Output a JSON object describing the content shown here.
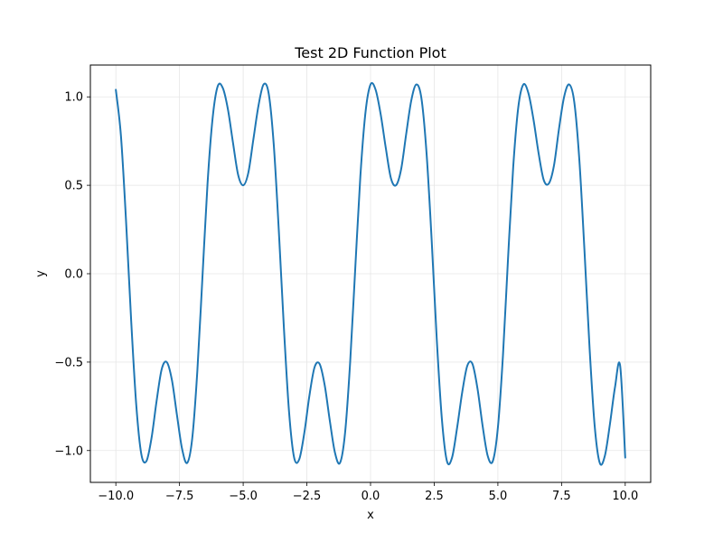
{
  "chart_data": {
    "type": "line",
    "title": "Test 2D Function Plot",
    "xlabel": "x",
    "ylabel": "y",
    "xlim": [
      -11.0,
      11.0
    ],
    "ylim": [
      -1.18,
      1.18
    ],
    "x_ticks": [
      -10.0,
      -7.5,
      -5.0,
      -2.5,
      0.0,
      2.5,
      5.0,
      7.5,
      10.0
    ],
    "x_tick_labels": [
      "−10.0",
      "−7.5",
      "−5.0",
      "−2.5",
      "0.0",
      "2.5",
      "5.0",
      "7.5",
      "10.0"
    ],
    "y_ticks": [
      -1.0,
      -0.5,
      0.0,
      0.5,
      1.0
    ],
    "y_tick_labels": [
      "−1.0",
      "−0.5",
      "0.0",
      "0.5",
      "1.0"
    ],
    "grid": true,
    "legend": "none",
    "series": [
      {
        "color": "#1f77b4",
        "x": [
          -10.0,
          -9.8,
          -9.6,
          -9.4,
          -9.2,
          -9.0,
          -8.8,
          -8.6,
          -8.4,
          -8.2,
          -8.0,
          -7.8,
          -7.6,
          -7.4,
          -7.2,
          -7.0,
          -6.8,
          -6.6,
          -6.4,
          -6.2,
          -6.0,
          -5.8,
          -5.6,
          -5.4,
          -5.2,
          -5.0,
          -4.8,
          -4.6,
          -4.4,
          -4.2,
          -4.0,
          -3.8,
          -3.6,
          -3.4,
          -3.2,
          -3.0,
          -2.8,
          -2.6,
          -2.4,
          -2.2,
          -2.0,
          -1.8,
          -1.6,
          -1.4,
          -1.2,
          -1.0,
          -0.8,
          -0.6,
          -0.4,
          -0.2,
          0.0,
          0.2,
          0.4,
          0.6,
          0.8,
          1.0,
          1.2,
          1.4,
          1.6,
          1.8,
          2.0,
          2.2,
          2.4,
          2.6,
          2.8,
          3.0,
          3.2,
          3.4,
          3.6,
          3.8,
          4.0,
          4.2,
          4.4,
          4.6,
          4.8,
          5.0,
          5.2,
          5.4,
          5.6,
          5.8,
          6.0,
          6.2,
          6.4,
          6.6,
          6.8,
          7.0,
          7.2,
          7.4,
          7.6,
          7.8,
          8.0,
          8.2,
          8.4,
          8.6,
          8.8,
          9.0,
          9.2,
          9.4,
          9.6,
          9.8,
          10.0
        ],
        "y": [
          1.04,
          0.78,
          0.3,
          -0.26,
          -0.74,
          -1.02,
          -1.06,
          -0.93,
          -0.72,
          -0.54,
          -0.5,
          -0.6,
          -0.8,
          -0.99,
          -1.07,
          -0.93,
          -0.55,
          -0.02,
          0.51,
          0.88,
          1.06,
          1.05,
          0.93,
          0.74,
          0.56,
          0.5,
          0.57,
          0.76,
          0.95,
          1.07,
          1.02,
          0.73,
          0.24,
          -0.31,
          -0.78,
          -1.04,
          -1.05,
          -0.9,
          -0.69,
          -0.53,
          -0.51,
          -0.63,
          -0.83,
          -1.01,
          -1.07,
          -0.9,
          -0.5,
          0.03,
          0.55,
          0.91,
          1.07,
          1.04,
          0.9,
          0.71,
          0.54,
          0.5,
          0.59,
          0.79,
          0.98,
          1.07,
          0.99,
          0.68,
          0.19,
          -0.37,
          -0.82,
          -1.06,
          -1.04,
          -0.87,
          -0.67,
          -0.52,
          -0.51,
          -0.65,
          -0.86,
          -1.03,
          -1.06,
          -0.87,
          -0.46,
          0.09,
          0.6,
          0.94,
          1.07,
          1.02,
          0.87,
          0.68,
          0.53,
          0.51,
          0.61,
          0.82,
          1.0,
          1.07,
          0.97,
          0.64,
          0.13,
          -0.42,
          -0.86,
          -1.07,
          -1.03,
          -0.85,
          -0.64,
          -0.52,
          -1.04
        ]
      }
    ]
  }
}
